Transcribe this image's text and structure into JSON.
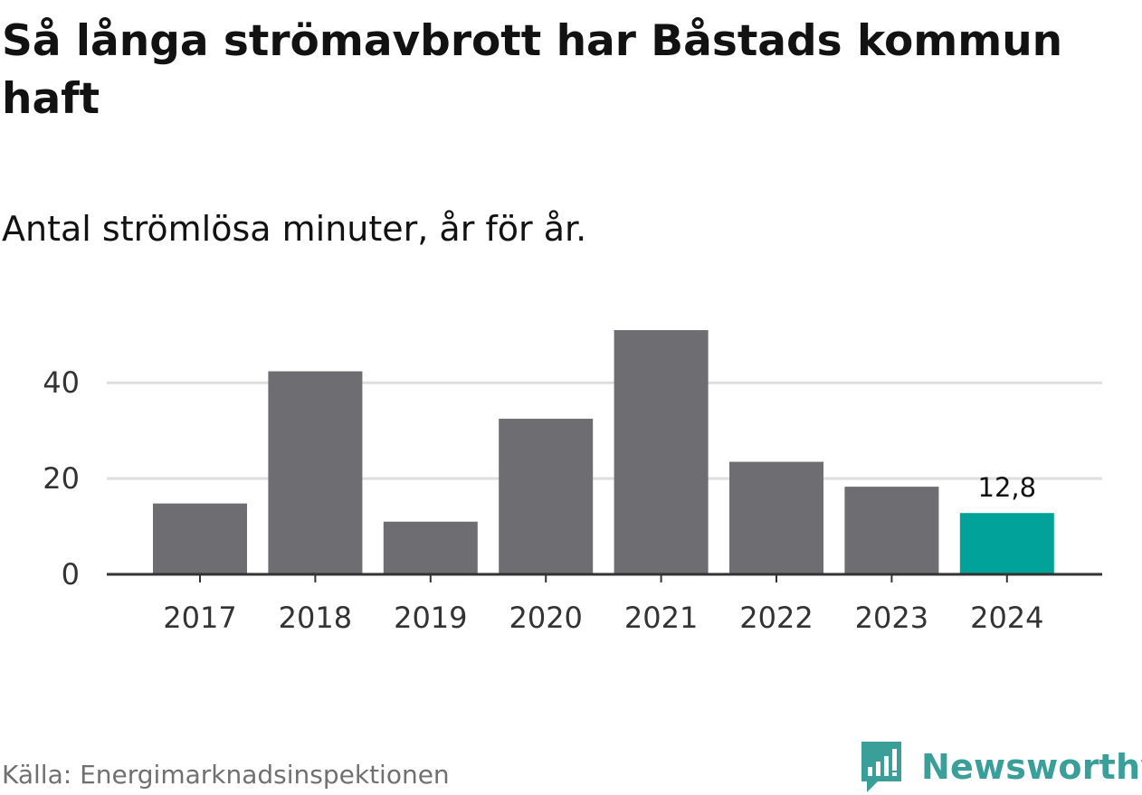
{
  "title": "Så långa strömavbrott har Båstads kommun haft",
  "subtitle": "Antal strömlösa minuter, år för år.",
  "source": "Källa: Energimarknadsinspektionen",
  "brand": {
    "name": "Newsworthy",
    "icon": "newsworthy-logo-icon",
    "color": "#3a9e99"
  },
  "colors": {
    "bar": "#6e6d72",
    "highlight": "#00a29a",
    "grid": "#dedede",
    "axis": "#333333",
    "tick_text": "#333333"
  },
  "chart_data": {
    "type": "bar",
    "title": "Så långa strömavbrott har Båstads kommun haft",
    "subtitle": "Antal strömlösa minuter, år för år.",
    "xlabel": "",
    "ylabel": "",
    "categories": [
      "2017",
      "2018",
      "2019",
      "2020",
      "2021",
      "2022",
      "2023",
      "2024"
    ],
    "values": [
      14.8,
      42.4,
      11.0,
      32.5,
      51.0,
      23.5,
      18.3,
      12.8
    ],
    "highlight_index": 7,
    "labels": [
      {
        "category": "2024",
        "text": "12,8"
      }
    ],
    "ylim": [
      0,
      51
    ],
    "yticks": [
      0,
      20,
      40
    ],
    "grid": true
  }
}
